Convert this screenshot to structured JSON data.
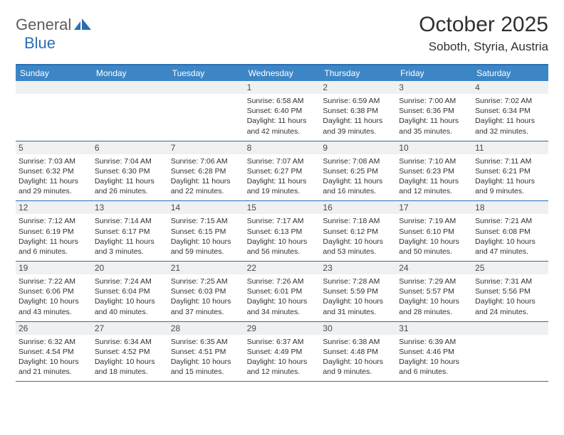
{
  "logo": {
    "text1": "General",
    "text2": "Blue"
  },
  "title": {
    "month": "October 2025",
    "location": "Soboth, Styria, Austria"
  },
  "day_names": [
    "Sunday",
    "Monday",
    "Tuesday",
    "Wednesday",
    "Thursday",
    "Friday",
    "Saturday"
  ],
  "colors": {
    "header_bar": "#3d86c6",
    "rule": "#2a6fb3",
    "daynum_bg": "#eef0f1",
    "logo_gray": "#5c5c5c",
    "logo_blue": "#2a6fb3"
  },
  "weeks": [
    [
      {
        "n": "",
        "sr": "",
        "ss": "",
        "dl1": "",
        "dl2": ""
      },
      {
        "n": "",
        "sr": "",
        "ss": "",
        "dl1": "",
        "dl2": ""
      },
      {
        "n": "",
        "sr": "",
        "ss": "",
        "dl1": "",
        "dl2": ""
      },
      {
        "n": "1",
        "sr": "Sunrise: 6:58 AM",
        "ss": "Sunset: 6:40 PM",
        "dl1": "Daylight: 11 hours",
        "dl2": "and 42 minutes."
      },
      {
        "n": "2",
        "sr": "Sunrise: 6:59 AM",
        "ss": "Sunset: 6:38 PM",
        "dl1": "Daylight: 11 hours",
        "dl2": "and 39 minutes."
      },
      {
        "n": "3",
        "sr": "Sunrise: 7:00 AM",
        "ss": "Sunset: 6:36 PM",
        "dl1": "Daylight: 11 hours",
        "dl2": "and 35 minutes."
      },
      {
        "n": "4",
        "sr": "Sunrise: 7:02 AM",
        "ss": "Sunset: 6:34 PM",
        "dl1": "Daylight: 11 hours",
        "dl2": "and 32 minutes."
      }
    ],
    [
      {
        "n": "5",
        "sr": "Sunrise: 7:03 AM",
        "ss": "Sunset: 6:32 PM",
        "dl1": "Daylight: 11 hours",
        "dl2": "and 29 minutes."
      },
      {
        "n": "6",
        "sr": "Sunrise: 7:04 AM",
        "ss": "Sunset: 6:30 PM",
        "dl1": "Daylight: 11 hours",
        "dl2": "and 26 minutes."
      },
      {
        "n": "7",
        "sr": "Sunrise: 7:06 AM",
        "ss": "Sunset: 6:28 PM",
        "dl1": "Daylight: 11 hours",
        "dl2": "and 22 minutes."
      },
      {
        "n": "8",
        "sr": "Sunrise: 7:07 AM",
        "ss": "Sunset: 6:27 PM",
        "dl1": "Daylight: 11 hours",
        "dl2": "and 19 minutes."
      },
      {
        "n": "9",
        "sr": "Sunrise: 7:08 AM",
        "ss": "Sunset: 6:25 PM",
        "dl1": "Daylight: 11 hours",
        "dl2": "and 16 minutes."
      },
      {
        "n": "10",
        "sr": "Sunrise: 7:10 AM",
        "ss": "Sunset: 6:23 PM",
        "dl1": "Daylight: 11 hours",
        "dl2": "and 12 minutes."
      },
      {
        "n": "11",
        "sr": "Sunrise: 7:11 AM",
        "ss": "Sunset: 6:21 PM",
        "dl1": "Daylight: 11 hours",
        "dl2": "and 9 minutes."
      }
    ],
    [
      {
        "n": "12",
        "sr": "Sunrise: 7:12 AM",
        "ss": "Sunset: 6:19 PM",
        "dl1": "Daylight: 11 hours",
        "dl2": "and 6 minutes."
      },
      {
        "n": "13",
        "sr": "Sunrise: 7:14 AM",
        "ss": "Sunset: 6:17 PM",
        "dl1": "Daylight: 11 hours",
        "dl2": "and 3 minutes."
      },
      {
        "n": "14",
        "sr": "Sunrise: 7:15 AM",
        "ss": "Sunset: 6:15 PM",
        "dl1": "Daylight: 10 hours",
        "dl2": "and 59 minutes."
      },
      {
        "n": "15",
        "sr": "Sunrise: 7:17 AM",
        "ss": "Sunset: 6:13 PM",
        "dl1": "Daylight: 10 hours",
        "dl2": "and 56 minutes."
      },
      {
        "n": "16",
        "sr": "Sunrise: 7:18 AM",
        "ss": "Sunset: 6:12 PM",
        "dl1": "Daylight: 10 hours",
        "dl2": "and 53 minutes."
      },
      {
        "n": "17",
        "sr": "Sunrise: 7:19 AM",
        "ss": "Sunset: 6:10 PM",
        "dl1": "Daylight: 10 hours",
        "dl2": "and 50 minutes."
      },
      {
        "n": "18",
        "sr": "Sunrise: 7:21 AM",
        "ss": "Sunset: 6:08 PM",
        "dl1": "Daylight: 10 hours",
        "dl2": "and 47 minutes."
      }
    ],
    [
      {
        "n": "19",
        "sr": "Sunrise: 7:22 AM",
        "ss": "Sunset: 6:06 PM",
        "dl1": "Daylight: 10 hours",
        "dl2": "and 43 minutes."
      },
      {
        "n": "20",
        "sr": "Sunrise: 7:24 AM",
        "ss": "Sunset: 6:04 PM",
        "dl1": "Daylight: 10 hours",
        "dl2": "and 40 minutes."
      },
      {
        "n": "21",
        "sr": "Sunrise: 7:25 AM",
        "ss": "Sunset: 6:03 PM",
        "dl1": "Daylight: 10 hours",
        "dl2": "and 37 minutes."
      },
      {
        "n": "22",
        "sr": "Sunrise: 7:26 AM",
        "ss": "Sunset: 6:01 PM",
        "dl1": "Daylight: 10 hours",
        "dl2": "and 34 minutes."
      },
      {
        "n": "23",
        "sr": "Sunrise: 7:28 AM",
        "ss": "Sunset: 5:59 PM",
        "dl1": "Daylight: 10 hours",
        "dl2": "and 31 minutes."
      },
      {
        "n": "24",
        "sr": "Sunrise: 7:29 AM",
        "ss": "Sunset: 5:57 PM",
        "dl1": "Daylight: 10 hours",
        "dl2": "and 28 minutes."
      },
      {
        "n": "25",
        "sr": "Sunrise: 7:31 AM",
        "ss": "Sunset: 5:56 PM",
        "dl1": "Daylight: 10 hours",
        "dl2": "and 24 minutes."
      }
    ],
    [
      {
        "n": "26",
        "sr": "Sunrise: 6:32 AM",
        "ss": "Sunset: 4:54 PM",
        "dl1": "Daylight: 10 hours",
        "dl2": "and 21 minutes."
      },
      {
        "n": "27",
        "sr": "Sunrise: 6:34 AM",
        "ss": "Sunset: 4:52 PM",
        "dl1": "Daylight: 10 hours",
        "dl2": "and 18 minutes."
      },
      {
        "n": "28",
        "sr": "Sunrise: 6:35 AM",
        "ss": "Sunset: 4:51 PM",
        "dl1": "Daylight: 10 hours",
        "dl2": "and 15 minutes."
      },
      {
        "n": "29",
        "sr": "Sunrise: 6:37 AM",
        "ss": "Sunset: 4:49 PM",
        "dl1": "Daylight: 10 hours",
        "dl2": "and 12 minutes."
      },
      {
        "n": "30",
        "sr": "Sunrise: 6:38 AM",
        "ss": "Sunset: 4:48 PM",
        "dl1": "Daylight: 10 hours",
        "dl2": "and 9 minutes."
      },
      {
        "n": "31",
        "sr": "Sunrise: 6:39 AM",
        "ss": "Sunset: 4:46 PM",
        "dl1": "Daylight: 10 hours",
        "dl2": "and 6 minutes."
      },
      {
        "n": "",
        "sr": "",
        "ss": "",
        "dl1": "",
        "dl2": ""
      }
    ]
  ]
}
